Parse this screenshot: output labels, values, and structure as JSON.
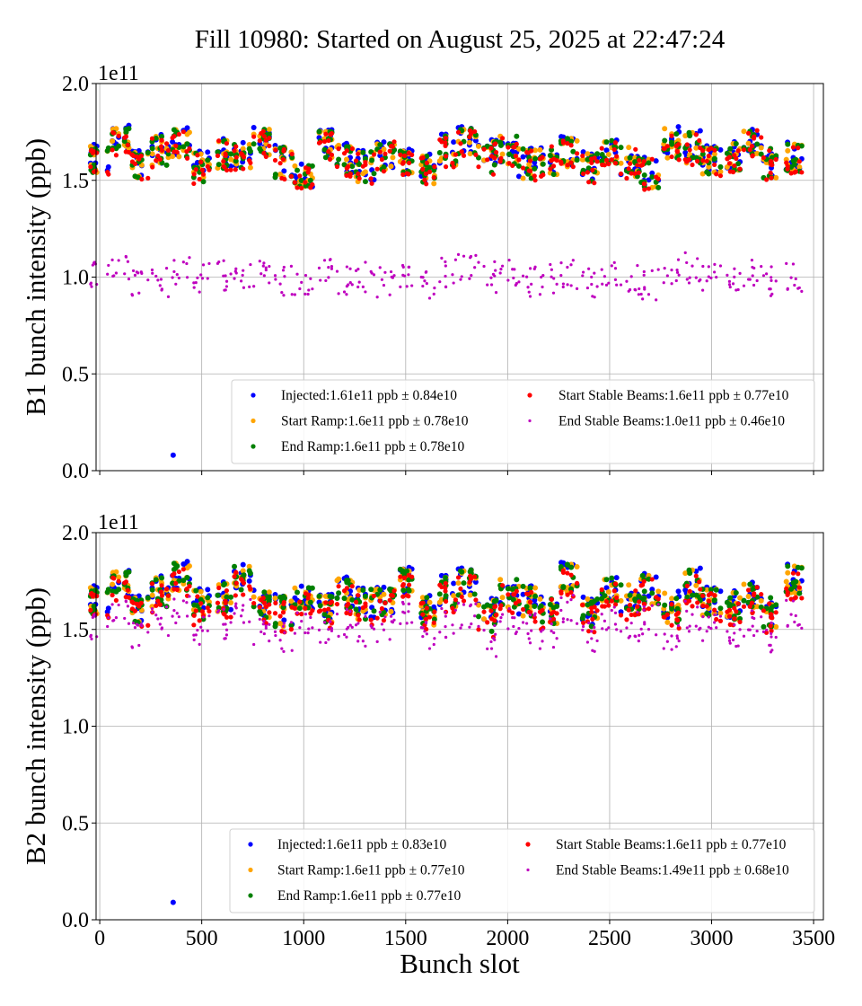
{
  "chart_data": {
    "type": "scatter",
    "title": "Fill 10980: Started on August 25, 2025 at 22:47:24",
    "xlabel": "Bunch slot",
    "xlim": [
      -18,
      3548
    ],
    "xticks": [
      "0",
      "500",
      "1000",
      "1500",
      "2000",
      "2500",
      "3000",
      "3500"
    ],
    "xtick_values": [
      0,
      500,
      1000,
      1500,
      2000,
      2500,
      3000,
      3500
    ],
    "grid": true,
    "legend_placement": "lower-right",
    "x": [
      0,
      100,
      200,
      300,
      400,
      500,
      600,
      700,
      800,
      900,
      1000,
      1100,
      1200,
      1300,
      1400,
      1500,
      1600,
      1700,
      1800,
      1900,
      2000,
      2100,
      2200,
      2300,
      2400,
      2500,
      2600,
      2700,
      2800,
      2900,
      3000,
      3100,
      3200,
      3300,
      3400
    ],
    "panels": [
      {
        "ylabel": "B1 bunch intensity (ppb)",
        "offset_text": "1e11",
        "ylim": [
          0.0,
          2.0
        ],
        "yticks": [
          "0.0",
          "0.5",
          "1.0",
          "1.5",
          "2.0"
        ],
        "ytick_values": [
          0.0,
          0.5,
          1.0,
          1.5,
          2.0
        ],
        "series": [
          {
            "name": "Injected:1.61e11 ppb ± 0.84e10",
            "color": "#0000ff",
            "outlier": [
              360,
              0.08
            ],
            "y": [
              1.62,
              1.72,
              1.6,
              1.66,
              1.7,
              1.58,
              1.65,
              1.62,
              1.72,
              1.6,
              1.52,
              1.7,
              1.62,
              1.58,
              1.64,
              1.6,
              1.56,
              1.66,
              1.7,
              1.63,
              1.67,
              1.6,
              1.62,
              1.66,
              1.58,
              1.64,
              1.6,
              1.55,
              1.7,
              1.68,
              1.62,
              1.64,
              1.72,
              1.6,
              1.62
            ]
          },
          {
            "name": "Start Ramp:1.6e11 ppb ± 0.78e10",
            "color": "#ffa500",
            "y": [
              1.61,
              1.7,
              1.59,
              1.65,
              1.69,
              1.57,
              1.64,
              1.61,
              1.71,
              1.59,
              1.51,
              1.69,
              1.61,
              1.57,
              1.63,
              1.59,
              1.55,
              1.65,
              1.69,
              1.62,
              1.66,
              1.59,
              1.61,
              1.65,
              1.57,
              1.63,
              1.59,
              1.54,
              1.69,
              1.67,
              1.61,
              1.63,
              1.71,
              1.59,
              1.61
            ]
          },
          {
            "name": "End Ramp:1.6e11 ppb ± 0.78e10",
            "color": "#008000",
            "y": [
              1.61,
              1.7,
              1.59,
              1.65,
              1.69,
              1.57,
              1.64,
              1.61,
              1.71,
              1.59,
              1.51,
              1.69,
              1.61,
              1.57,
              1.63,
              1.59,
              1.55,
              1.65,
              1.69,
              1.62,
              1.66,
              1.59,
              1.61,
              1.65,
              1.57,
              1.63,
              1.59,
              1.54,
              1.69,
              1.67,
              1.61,
              1.63,
              1.71,
              1.59,
              1.61
            ]
          },
          {
            "name": "Start Stable Beams:1.6e11 ppb ± 0.77e10",
            "color": "#ff0000",
            "y": [
              1.6,
              1.68,
              1.58,
              1.64,
              1.68,
              1.56,
              1.63,
              1.6,
              1.7,
              1.58,
              1.5,
              1.68,
              1.6,
              1.56,
              1.62,
              1.58,
              1.54,
              1.64,
              1.68,
              1.61,
              1.65,
              1.58,
              1.6,
              1.64,
              1.56,
              1.62,
              1.58,
              1.53,
              1.68,
              1.66,
              1.6,
              1.62,
              1.7,
              1.58,
              1.6
            ]
          },
          {
            "name": "End Stable Beams:1.0e11 ppb ± 0.46e10",
            "color": "#bf00bf",
            "y": [
              1.02,
              1.04,
              0.98,
              0.97,
              1.03,
              1.0,
              1.01,
              0.99,
              1.03,
              0.98,
              0.95,
              1.03,
              0.99,
              1.0,
              0.97,
              1.0,
              0.95,
              1.02,
              1.04,
              1.0,
              1.02,
              0.98,
              0.99,
              1.01,
              0.97,
              1.0,
              0.98,
              0.96,
              1.04,
              1.05,
              1.0,
              1.01,
              1.03,
              0.98,
              1.0
            ]
          }
        ]
      },
      {
        "ylabel": "B2 bunch intensity (ppb)",
        "offset_text": "1e11",
        "ylim": [
          0.0,
          2.0
        ],
        "yticks": [
          "0.0",
          "0.5",
          "1.0",
          "1.5",
          "2.0"
        ],
        "ytick_values": [
          0.0,
          0.5,
          1.0,
          1.5,
          2.0
        ],
        "series": [
          {
            "name": "Injected:1.6e11 ppb ± 0.83e10",
            "color": "#0000ff",
            "outlier": [
              360,
              0.09
            ],
            "y": [
              1.66,
              1.74,
              1.62,
              1.7,
              1.78,
              1.64,
              1.68,
              1.76,
              1.65,
              1.6,
              1.66,
              1.62,
              1.7,
              1.64,
              1.66,
              1.76,
              1.6,
              1.7,
              1.74,
              1.58,
              1.7,
              1.66,
              1.62,
              1.78,
              1.6,
              1.7,
              1.66,
              1.72,
              1.62,
              1.74,
              1.66,
              1.64,
              1.7,
              1.6,
              1.76
            ]
          },
          {
            "name": "Start Ramp:1.6e11 ppb ± 0.77e10",
            "color": "#ffa500",
            "y": [
              1.65,
              1.73,
              1.61,
              1.69,
              1.77,
              1.63,
              1.67,
              1.75,
              1.64,
              1.59,
              1.65,
              1.61,
              1.69,
              1.63,
              1.65,
              1.75,
              1.59,
              1.69,
              1.73,
              1.57,
              1.69,
              1.65,
              1.61,
              1.77,
              1.59,
              1.69,
              1.65,
              1.71,
              1.61,
              1.73,
              1.65,
              1.63,
              1.69,
              1.59,
              1.75
            ]
          },
          {
            "name": "End Ramp:1.6e11 ppb ± 0.77e10",
            "color": "#008000",
            "y": [
              1.65,
              1.73,
              1.61,
              1.69,
              1.77,
              1.63,
              1.67,
              1.75,
              1.64,
              1.59,
              1.65,
              1.61,
              1.69,
              1.63,
              1.65,
              1.75,
              1.59,
              1.69,
              1.73,
              1.57,
              1.69,
              1.65,
              1.61,
              1.77,
              1.59,
              1.69,
              1.65,
              1.71,
              1.61,
              1.73,
              1.65,
              1.63,
              1.69,
              1.59,
              1.75
            ]
          },
          {
            "name": "Start Stable Beams:1.6e11 ppb ± 0.77e10",
            "color": "#ff0000",
            "y": [
              1.63,
              1.7,
              1.59,
              1.66,
              1.74,
              1.6,
              1.64,
              1.72,
              1.61,
              1.56,
              1.62,
              1.58,
              1.66,
              1.6,
              1.62,
              1.72,
              1.56,
              1.66,
              1.7,
              1.54,
              1.66,
              1.62,
              1.58,
              1.74,
              1.56,
              1.66,
              1.62,
              1.68,
              1.58,
              1.7,
              1.62,
              1.6,
              1.66,
              1.56,
              1.72
            ]
          },
          {
            "name": "End Stable Beams:1.49e11 ppb ± 0.68e10",
            "color": "#bf00bf",
            "y": [
              1.52,
              1.58,
              1.48,
              1.54,
              1.6,
              1.5,
              1.53,
              1.58,
              1.5,
              1.46,
              1.52,
              1.48,
              1.54,
              1.49,
              1.51,
              1.58,
              1.46,
              1.53,
              1.56,
              1.44,
              1.54,
              1.51,
              1.48,
              1.6,
              1.46,
              1.54,
              1.51,
              1.55,
              1.47,
              1.57,
              1.51,
              1.49,
              1.54,
              1.46,
              1.58
            ]
          }
        ]
      }
    ]
  }
}
